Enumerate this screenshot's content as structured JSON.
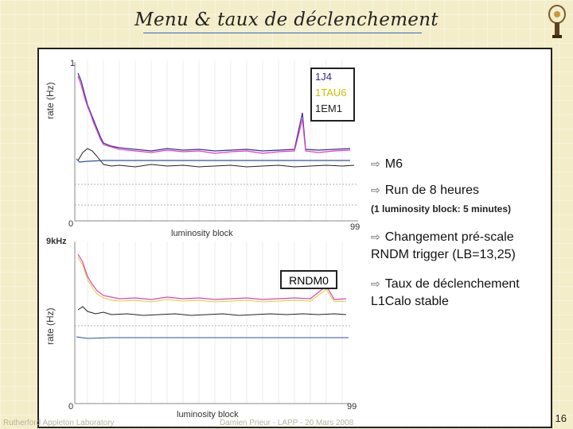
{
  "slide": {
    "title": "Menu & taux de déclenchement",
    "page_number": "16",
    "footer_left": "Rutherford Appleton Laboratory",
    "footer_mid": "Damien Prieur - LAPP - 20 Mars 2008"
  },
  "plot_top": {
    "y_axis_label": "rate (Hz)",
    "y_top_tick": "1",
    "y_bottom_tick": "0",
    "x_axis_label": "luminosity block",
    "x_right_tick": "99",
    "legend": [
      "1J4",
      "1TAU6",
      "1EM1"
    ],
    "legend_colors": [
      "#3a2a9a",
      "#d8d020",
      "#222222"
    ]
  },
  "plot_bottom": {
    "y_axis_label": "rate (Hz)",
    "y_top_tick": "9kHz",
    "y_bottom_tick": "0",
    "x_axis_label": "luminosity block",
    "x_right_tick": "99",
    "box_label": "RNDM0"
  },
  "bullets": [
    {
      "line1": "M6",
      "line2": ""
    },
    {
      "line1": "Run de 8 heures",
      "line2": ""
    },
    {
      "line1": "Changement pré-scale",
      "line2": "RNDM trigger (LB=13,25)"
    },
    {
      "line1": "Taux de déclenchement",
      "line2": "L1Calo stable"
    }
  ],
  "note": "(1 luminosity block: 5 minutes)",
  "icons": [
    "arrow-right-icon",
    "atlas-logo-icon"
  ],
  "colors": {
    "background": "#f3edc9",
    "series_pink": "#e040c0",
    "series_yellow": "#e0d020",
    "series_dark": "#222222"
  }
}
